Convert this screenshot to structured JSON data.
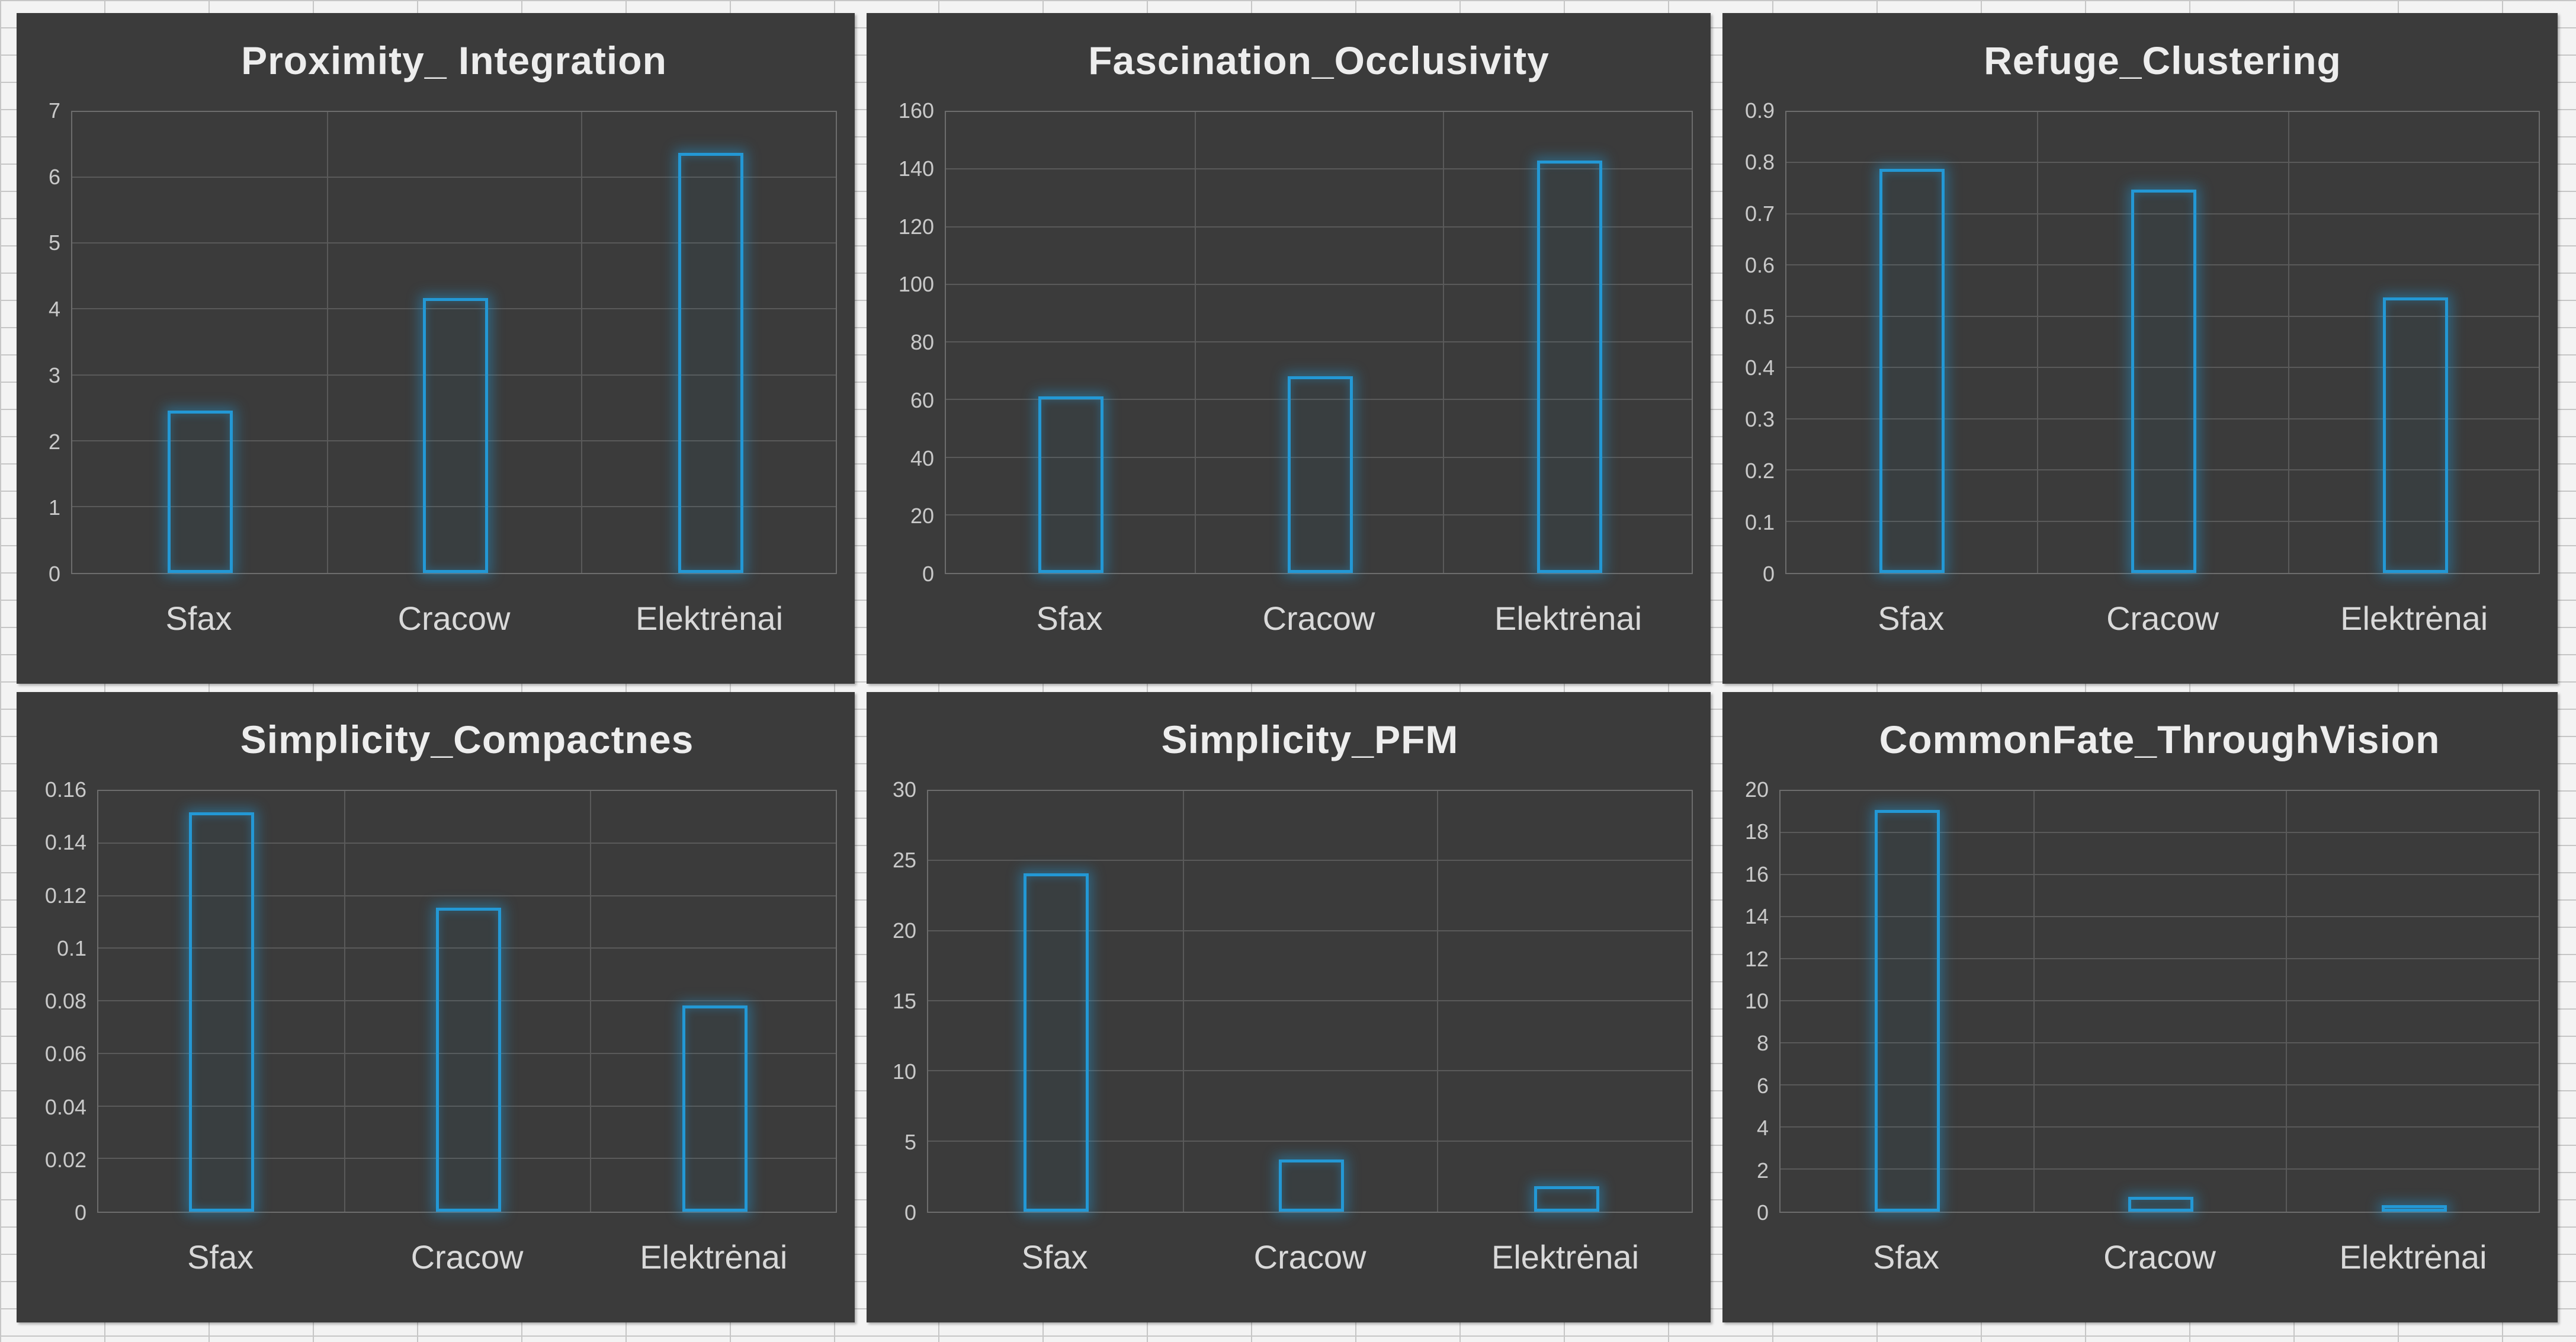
{
  "colors": {
    "bar_outline": "#2398d5",
    "panel_bg": "#3b3b3b",
    "gridline": "#5a5a5a",
    "title": "#ededed",
    "tick_label": "#c9c9c9",
    "category_label": "#d9d9d9",
    "worksheet_bg": "#f3f3f3"
  },
  "chart_data": [
    {
      "type": "bar",
      "title": "Proximity_ Integration",
      "categories": [
        "Sfax",
        "Cracow",
        "Elektrėnai"
      ],
      "values": [
        2.45,
        4.15,
        6.35
      ],
      "ylim": [
        0,
        7
      ],
      "ytick_step": 1,
      "yticks": [
        "0",
        "1",
        "2",
        "3",
        "4",
        "5",
        "6",
        "7"
      ],
      "xlabel": "",
      "ylabel": "",
      "grid": true,
      "legend": false
    },
    {
      "type": "bar",
      "title": "Fascination_Occlusivity",
      "categories": [
        "Sfax",
        "Cracow",
        "Elektrėnai"
      ],
      "values": [
        61,
        68,
        142.5
      ],
      "ylim": [
        0,
        160
      ],
      "ytick_step": 20,
      "yticks": [
        "0",
        "20",
        "40",
        "60",
        "80",
        "100",
        "120",
        "140",
        "160"
      ],
      "xlabel": "",
      "ylabel": "",
      "grid": true,
      "legend": false
    },
    {
      "type": "bar",
      "title": "Refuge_Clustering",
      "categories": [
        "Sfax",
        "Cracow",
        "Elektrėnai"
      ],
      "values": [
        0.785,
        0.745,
        0.535
      ],
      "ylim": [
        0,
        0.9
      ],
      "ytick_step": 0.1,
      "yticks": [
        "0",
        "0.1",
        "0.2",
        "0.3",
        "0.4",
        "0.5",
        "0.6",
        "0.7",
        "0.8",
        "0.9"
      ],
      "xlabel": "",
      "ylabel": "",
      "grid": true,
      "legend": false
    },
    {
      "type": "bar",
      "title": "Simplicity_Compactnes",
      "categories": [
        "Sfax",
        "Cracow",
        "Elektrėnai"
      ],
      "values": [
        0.151,
        0.115,
        0.078
      ],
      "ylim": [
        0,
        0.16
      ],
      "ytick_step": 0.02,
      "yticks": [
        "0",
        "0.02",
        "0.04",
        "0.06",
        "0.08",
        "0.1",
        "0.12",
        "0.14",
        "0.16"
      ],
      "xlabel": "",
      "ylabel": "",
      "grid": true,
      "legend": false
    },
    {
      "type": "bar",
      "title": "Simplicity_PFM",
      "categories": [
        "Sfax",
        "Cracow",
        "Elektrėnai"
      ],
      "values": [
        24,
        3.7,
        1.8
      ],
      "ylim": [
        0,
        30
      ],
      "ytick_step": 5,
      "yticks": [
        "0",
        "5",
        "10",
        "15",
        "20",
        "25",
        "30"
      ],
      "xlabel": "",
      "ylabel": "",
      "grid": true,
      "legend": false
    },
    {
      "type": "bar",
      "title": "CommonFate_ThroughVision",
      "categories": [
        "Sfax",
        "Cracow",
        "Elektrėnai"
      ],
      "values": [
        19,
        0.7,
        0.3
      ],
      "ylim": [
        0,
        20
      ],
      "ytick_step": 2,
      "yticks": [
        "0",
        "2",
        "4",
        "6",
        "8",
        "10",
        "12",
        "14",
        "16",
        "18",
        "20"
      ],
      "xlabel": "",
      "ylabel": "",
      "grid": true,
      "legend": false
    }
  ]
}
